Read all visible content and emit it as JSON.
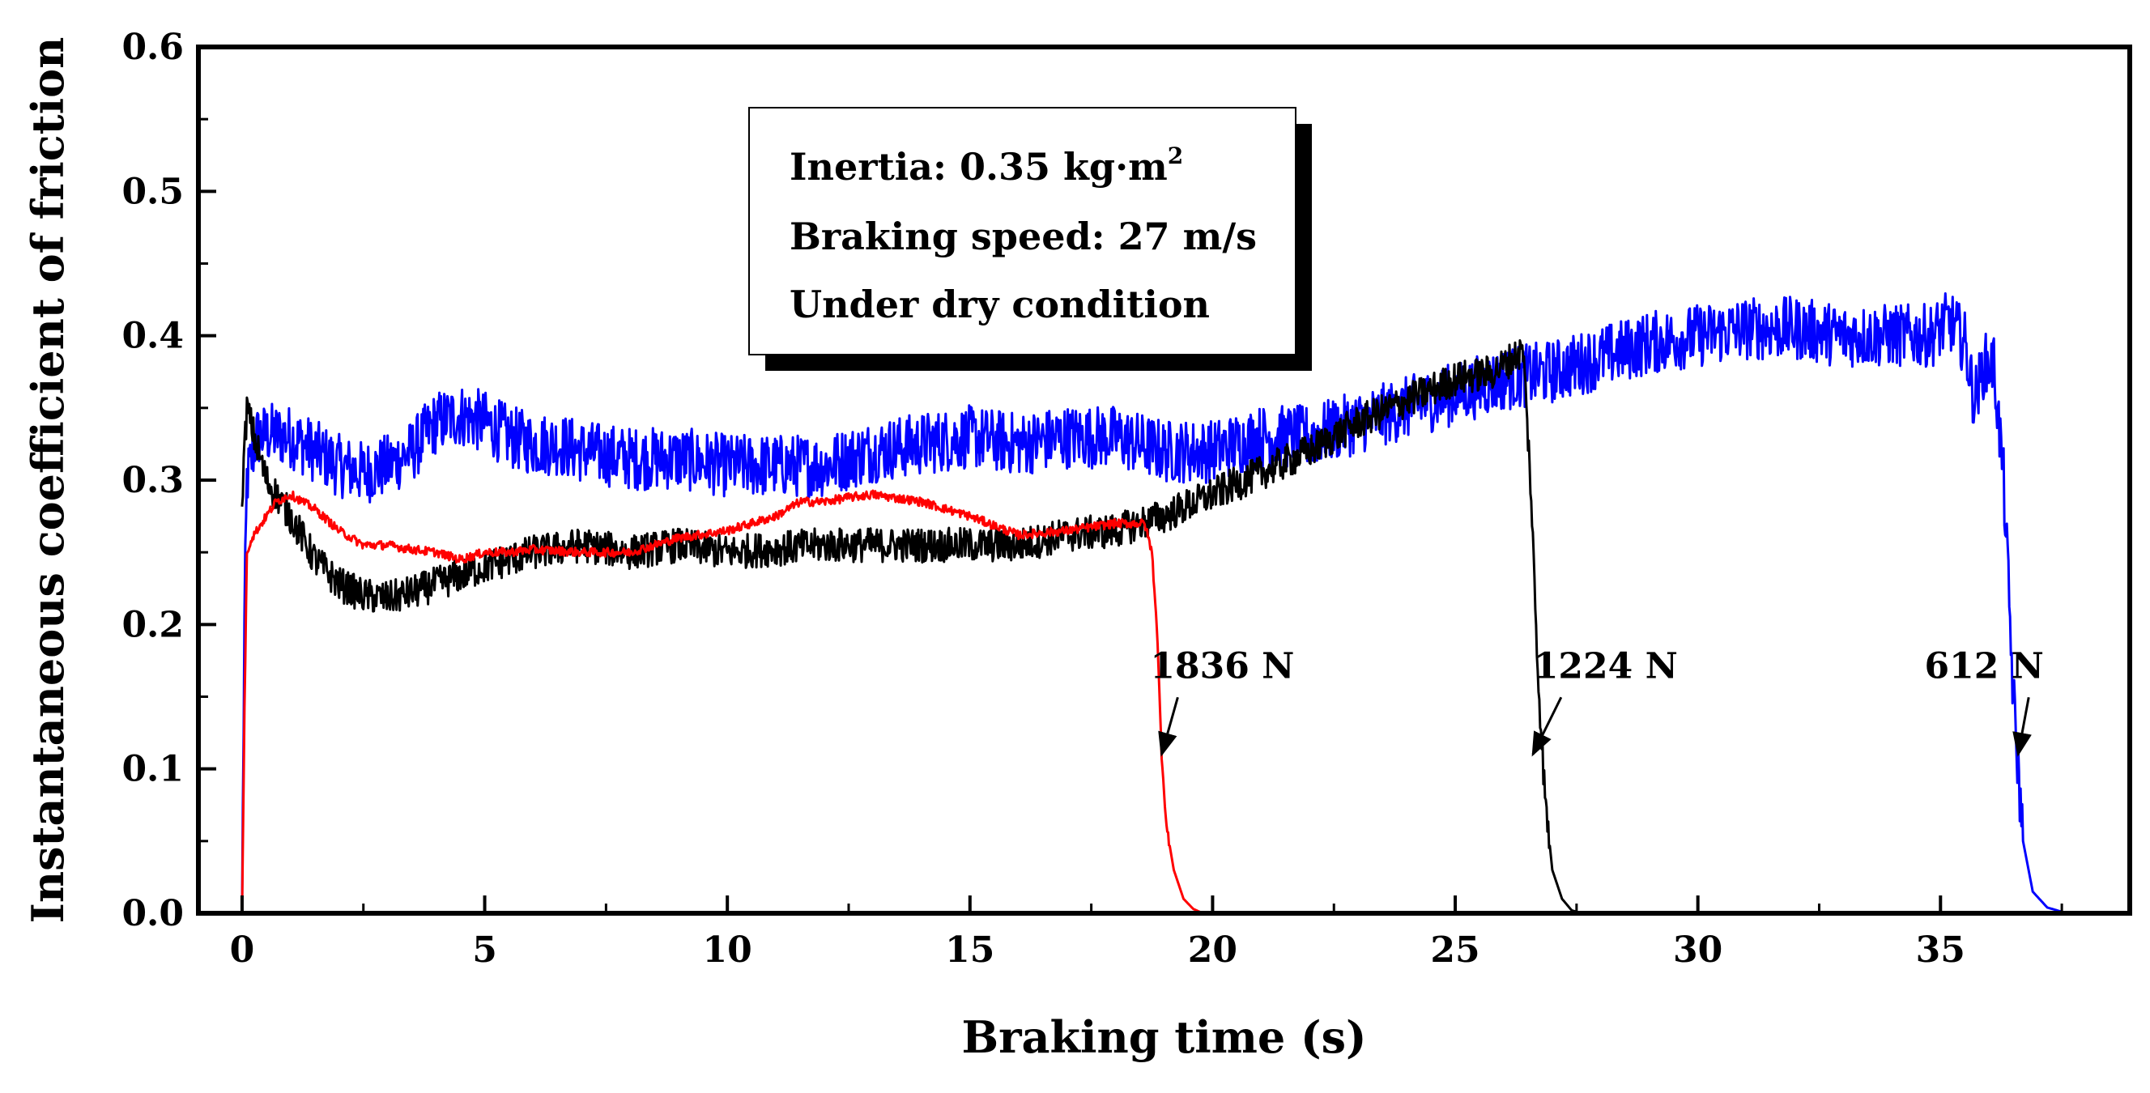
{
  "chart_data": {
    "type": "line",
    "title": "",
    "xlabel": "Braking time (s)",
    "ylabel": "Instantaneous coefficient of friction",
    "xlim": [
      -0.9,
      38.9
    ],
    "ylim": [
      0.0,
      0.6
    ],
    "xticks": [
      0,
      5,
      10,
      15,
      20,
      25,
      30,
      35
    ],
    "xtick_labels": [
      "0",
      "5",
      "10",
      "15",
      "20",
      "25",
      "30",
      "35"
    ],
    "yticks": [
      0.0,
      0.1,
      0.2,
      0.3,
      0.4,
      0.5,
      0.6
    ],
    "ytick_labels": [
      "0.0",
      "0.1",
      "0.2",
      "0.3",
      "0.4",
      "0.5",
      "0.6"
    ],
    "grid": false,
    "info_box": {
      "line1_prefix": "Inertia: 0.35 kg·m",
      "line1_superscript": "2",
      "line2": "Braking speed: 27 m/s",
      "line3": "Under dry condition"
    },
    "annotations": [
      {
        "text": "1836 N",
        "series": "1836 N",
        "label_x": 20.2,
        "label_y": 0.172,
        "point_x": 18.95,
        "point_y": 0.11
      },
      {
        "text": "1224 N",
        "series": "1224 N",
        "label_x": 28.1,
        "label_y": 0.172,
        "point_x": 26.6,
        "point_y": 0.11
      },
      {
        "text": "612 N",
        "series": "612 N",
        "label_x": 35.9,
        "label_y": 0.172,
        "point_x": 36.6,
        "point_y": 0.11
      }
    ],
    "series": [
      {
        "name": "1836 N",
        "color": "#ff0000",
        "noise": 0.003,
        "x": [
          0.0,
          0.05,
          0.1,
          0.2,
          0.4,
          0.7,
          1.0,
          1.5,
          2.0,
          2.5,
          3.0,
          3.5,
          4.0,
          4.5,
          5.0,
          5.5,
          6.0,
          7.0,
          8.0,
          9.0,
          10.0,
          11.0,
          11.5,
          12.0,
          12.5,
          13.0,
          14.0,
          15.0,
          16.0,
          17.0,
          18.0,
          18.6,
          18.75,
          18.85,
          18.95,
          19.05,
          19.2,
          19.4,
          19.6,
          19.8,
          20.0,
          20.5,
          21.0,
          21.5,
          21.8
        ],
        "y": [
          0.0,
          0.14,
          0.25,
          0.26,
          0.27,
          0.285,
          0.29,
          0.28,
          0.265,
          0.255,
          0.255,
          0.252,
          0.25,
          0.245,
          0.25,
          0.25,
          0.252,
          0.25,
          0.25,
          0.26,
          0.265,
          0.275,
          0.285,
          0.285,
          0.288,
          0.29,
          0.285,
          0.275,
          0.262,
          0.265,
          0.27,
          0.27,
          0.25,
          0.2,
          0.11,
          0.06,
          0.03,
          0.01,
          0.003,
          0.0,
          0.0,
          0.0,
          0.0,
          0.0,
          0.0
        ]
      },
      {
        "name": "1224 N",
        "color": "#000000",
        "noise": 0.012,
        "x": [
          0.0,
          0.1,
          0.25,
          0.5,
          1.0,
          1.5,
          2.0,
          2.5,
          3.0,
          3.5,
          4.0,
          5.0,
          6.0,
          7.0,
          8.0,
          9.0,
          10.0,
          12.0,
          14.0,
          16.0,
          17.0,
          18.0,
          19.0,
          20.0,
          21.0,
          22.0,
          23.0,
          24.0,
          25.0,
          25.8,
          26.2,
          26.4,
          26.55,
          26.7,
          26.85,
          27.0,
          27.2,
          27.4,
          27.6
        ],
        "y": [
          0.29,
          0.35,
          0.33,
          0.3,
          0.275,
          0.245,
          0.228,
          0.22,
          0.218,
          0.222,
          0.228,
          0.24,
          0.25,
          0.255,
          0.25,
          0.255,
          0.25,
          0.255,
          0.255,
          0.255,
          0.262,
          0.265,
          0.275,
          0.29,
          0.305,
          0.32,
          0.34,
          0.355,
          0.37,
          0.375,
          0.385,
          0.39,
          0.3,
          0.17,
          0.08,
          0.03,
          0.01,
          0.002,
          0.0
        ]
      },
      {
        "name": "612 N",
        "color": "#0000ff",
        "noise": 0.022,
        "x": [
          0.0,
          0.05,
          0.1,
          0.3,
          0.6,
          1.0,
          1.5,
          2.0,
          2.5,
          3.0,
          3.5,
          4.0,
          4.5,
          5.0,
          5.5,
          6.0,
          6.5,
          7.0,
          8.0,
          9.0,
          10.0,
          11.0,
          12.0,
          13.0,
          14.0,
          15.0,
          16.0,
          17.0,
          18.0,
          19.0,
          20.0,
          21.0,
          22.0,
          23.0,
          24.0,
          25.0,
          26.0,
          27.0,
          28.0,
          29.0,
          30.0,
          31.0,
          32.0,
          33.0,
          34.0,
          34.8,
          35.2,
          35.5,
          35.7,
          35.9,
          36.1,
          36.3,
          36.5,
          36.7,
          36.9,
          37.2,
          37.6,
          38.0,
          38.5,
          38.9
        ],
        "y": [
          0.0,
          0.2,
          0.3,
          0.33,
          0.332,
          0.33,
          0.32,
          0.31,
          0.305,
          0.31,
          0.32,
          0.34,
          0.345,
          0.34,
          0.33,
          0.325,
          0.325,
          0.32,
          0.315,
          0.315,
          0.31,
          0.31,
          0.31,
          0.32,
          0.325,
          0.33,
          0.325,
          0.33,
          0.33,
          0.32,
          0.32,
          0.33,
          0.33,
          0.34,
          0.35,
          0.36,
          0.37,
          0.375,
          0.385,
          0.395,
          0.4,
          0.405,
          0.405,
          0.4,
          0.4,
          0.4,
          0.41,
          0.395,
          0.355,
          0.38,
          0.38,
          0.3,
          0.15,
          0.05,
          0.015,
          0.004,
          0.0,
          0.0,
          0.0,
          0.0
        ]
      }
    ]
  }
}
